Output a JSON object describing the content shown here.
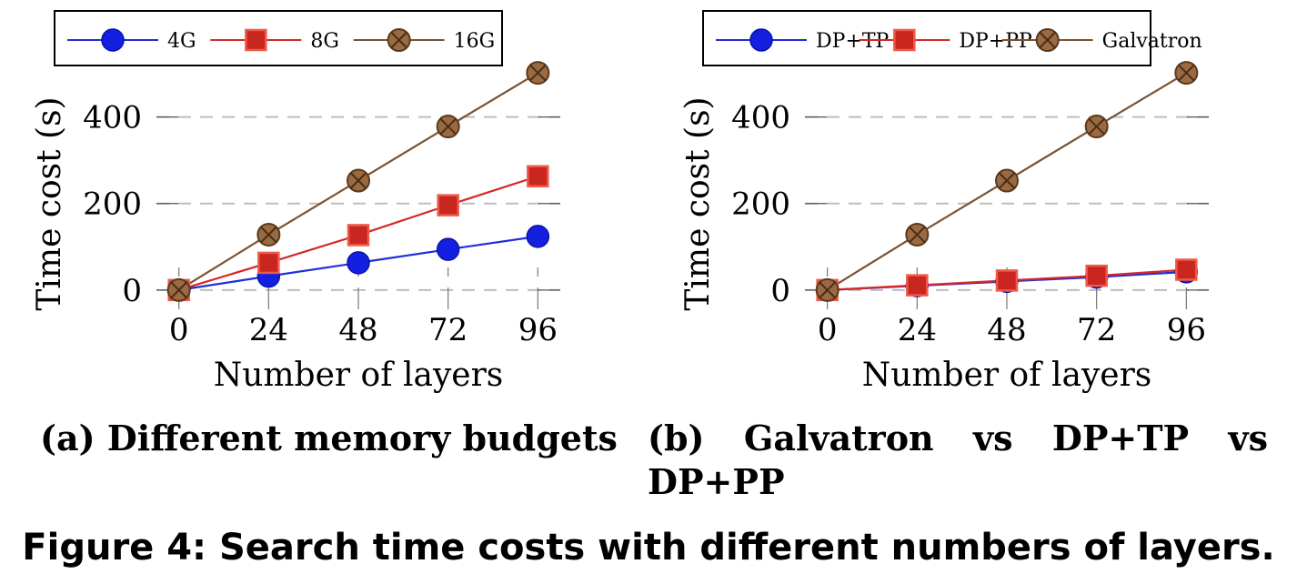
{
  "figure_caption": "Figure 4: Search time costs with different numbers of layers.",
  "chart_data": [
    {
      "type": "line",
      "subcaption": "(a) Different memory budgets",
      "x": [
        0,
        24,
        48,
        72,
        96
      ],
      "xlabel": "Number of layers",
      "ylabel": "Time cost (s)",
      "xticks": [
        "0",
        "24",
        "48",
        "72",
        "96"
      ],
      "yticks": [
        "0",
        "200",
        "400"
      ],
      "xlim": [
        -6,
        102
      ],
      "ylim": [
        -15,
        540
      ],
      "grid": "horizontal-dashed",
      "legend_position": "top",
      "series": [
        {
          "name": "4G",
          "values": [
            0,
            32,
            63,
            94,
            124
          ],
          "color": "#1f2fd6",
          "marker": "circle"
        },
        {
          "name": "8G",
          "values": [
            0,
            63,
            127,
            196,
            263
          ],
          "color": "#d62728",
          "marker": "square"
        },
        {
          "name": "16G",
          "values": [
            0,
            128,
            253,
            378,
            502
          ],
          "color": "#7b5230",
          "marker": "otimes"
        }
      ]
    },
    {
      "type": "line",
      "subcaption_line1": [
        "(b)",
        "Galvatron",
        "vs",
        "DP+TP",
        "vs"
      ],
      "subcaption_line2": "DP+PP",
      "x": [
        0,
        24,
        48,
        72,
        96
      ],
      "xlabel": "Number of layers",
      "ylabel": "Time cost (s)",
      "xticks": [
        "0",
        "24",
        "48",
        "72",
        "96"
      ],
      "yticks": [
        "0",
        "200",
        "400"
      ],
      "xlim": [
        -6,
        102
      ],
      "ylim": [
        -15,
        540
      ],
      "grid": "horizontal-dashed",
      "legend_position": "top",
      "series": [
        {
          "name": "DP+TP",
          "values": [
            0,
            10,
            20,
            30,
            42
          ],
          "color": "#1f2fd6",
          "marker": "circle"
        },
        {
          "name": "DP+PP",
          "values": [
            0,
            11,
            22,
            33,
            47
          ],
          "color": "#d62728",
          "marker": "square"
        },
        {
          "name": "Galvatron",
          "values": [
            0,
            128,
            253,
            378,
            502
          ],
          "color": "#7b5230",
          "marker": "otimes"
        }
      ]
    }
  ]
}
